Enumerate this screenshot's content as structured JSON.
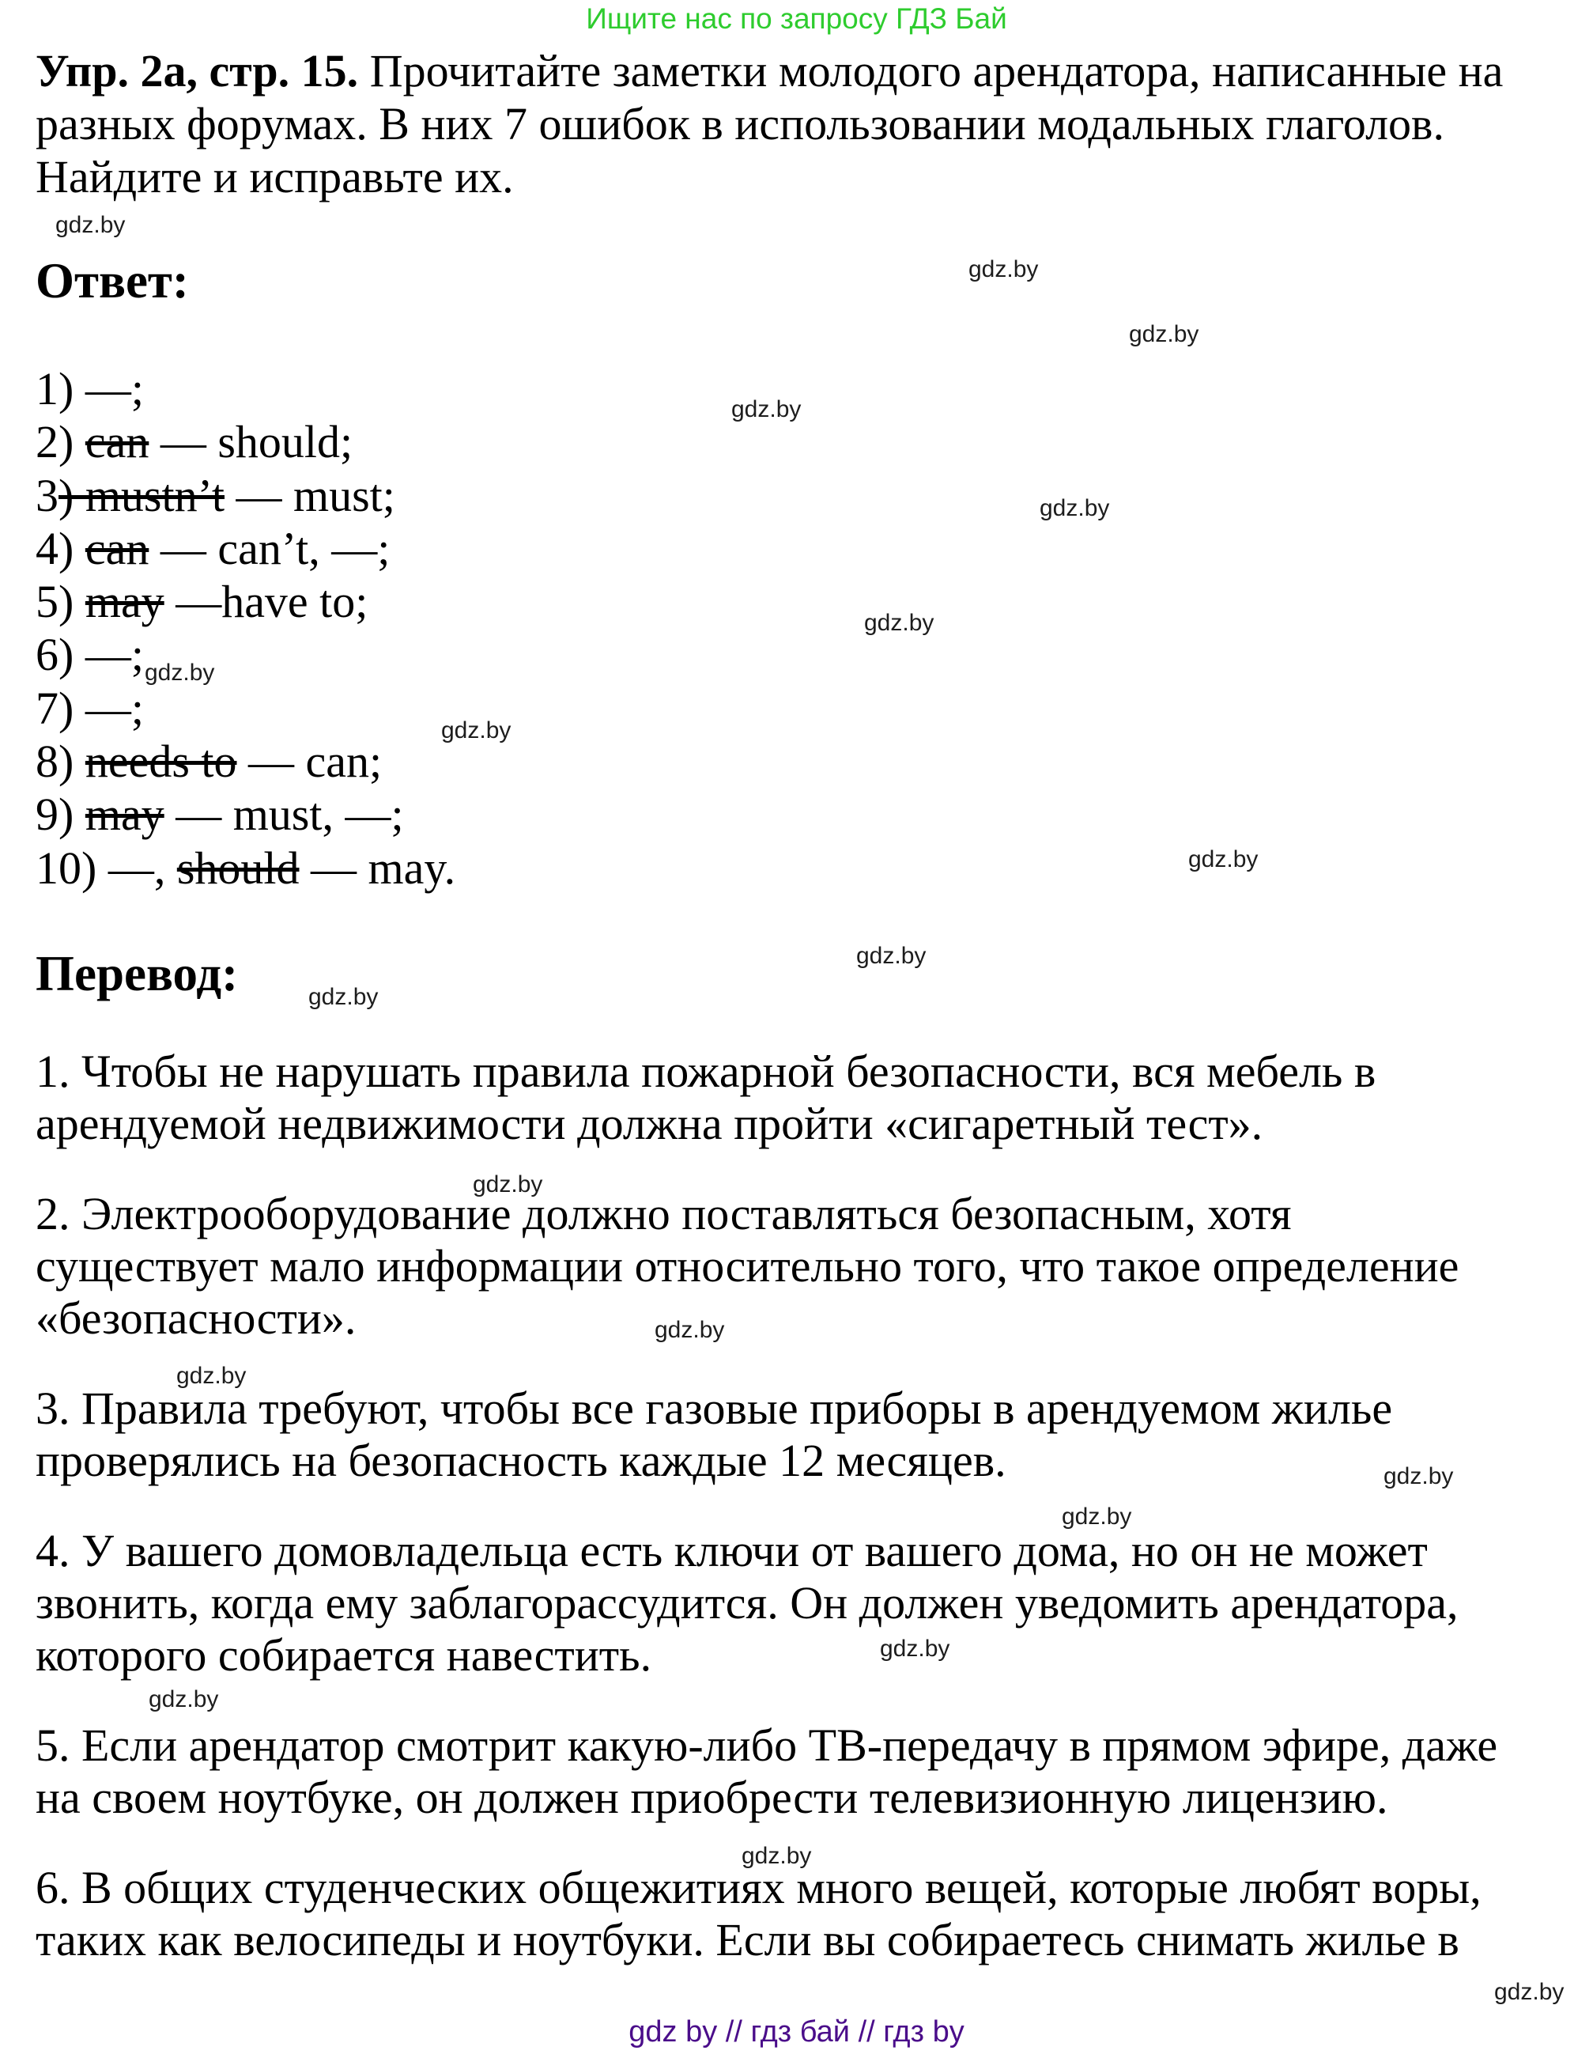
{
  "promo": {
    "text": "Ищите нас по запросу ГДЗ Бай",
    "color": "#2ecc2e"
  },
  "watermark": {
    "text": "gdz.by"
  },
  "task": {
    "title": "Упр. 2а, стр. 15.",
    "line1_rest": " Прочитайте заметки молодого арендатора, написанные на",
    "line2": "разных форумах. В них 7 ошибок в использовании модальных глаголов.",
    "line3": "Найдите и исправьте их."
  },
  "answer": {
    "heading": "Ответ:",
    "items": [
      {
        "pre": "1) ",
        "strike": "",
        "post": "—;"
      },
      {
        "pre": "2) ",
        "strike": "can",
        "post": " — should;"
      },
      {
        "pre": "3",
        "strike": ") mustn’t",
        "post": " — must;"
      },
      {
        "pre": "4) ",
        "strike": "can",
        "post": " — can’t, —;"
      },
      {
        "pre": "5) ",
        "strike": "may",
        "post": " —have to;"
      },
      {
        "pre": "6) ",
        "strike": "",
        "post": "—;"
      },
      {
        "pre": "7) ",
        "strike": "",
        "post": "—;"
      },
      {
        "pre": "8) ",
        "strike": "needs to",
        "post": " — can;"
      },
      {
        "pre": "9) ",
        "strike": "may",
        "post": " — must, —;"
      },
      {
        "pre": "10) —, ",
        "strike": "should",
        "post": " — may."
      }
    ]
  },
  "translation": {
    "heading": "Перевод:",
    "paragraphs": [
      [
        "1. Чтобы не нарушать правила пожарной безопасности, вся мебель в",
        "арендуемой недвижимости должна пройти «сигаретный тест»."
      ],
      [
        "2. Электрооборудование должно поставляться безопасным, хотя",
        "существует мало информации относительно того, что такое определение",
        "«безопасности»."
      ],
      [
        "3. Правила требуют, чтобы все газовые приборы в арендуемом жилье",
        "проверялись на безопасность каждые 12 месяцев."
      ],
      [
        "4. У вашего домовладельца есть ключи от вашего дома, но он не может",
        "звонить, когда ему заблагорассудится. Он должен уведомить арендатора,",
        "которого собирается навестить."
      ],
      [
        "5. Если арендатор смотрит какую-либо ТВ-передачу в прямом эфире, даже",
        "на своем ноутбуке, он должен приобрести телевизионную лицензию."
      ],
      [
        "6. В общих студенческих общежитиях много вещей, которые любят воры,",
        "таких как велосипеды и ноутбуки. Если вы собираетесь снимать жилье в"
      ]
    ]
  },
  "footer": {
    "text": "gdz by  //  гдз бай  //  гдз by",
    "color": "#4a0d8a"
  }
}
